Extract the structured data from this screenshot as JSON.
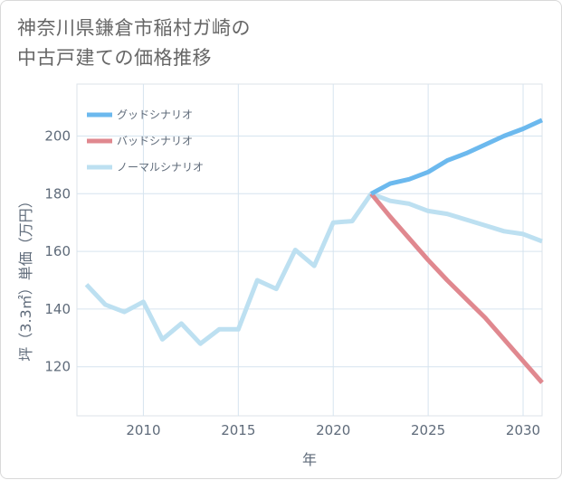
{
  "title": {
    "line1": "神奈川県鎌倉市稲村ガ崎の",
    "line2": "中古戸建ての価格推移"
  },
  "chart_data": {
    "type": "line",
    "xlabel": "年",
    "ylabel": "坪（3.3㎡）単価（万円）",
    "xlim": [
      2006.5,
      2031
    ],
    "ylim": [
      103,
      218
    ],
    "xticks": [
      2010,
      2015,
      2020,
      2025,
      2030
    ],
    "yticks": [
      120,
      140,
      160,
      180,
      200
    ],
    "grid": true,
    "legend_position": "top-left",
    "series": [
      {
        "name": "グッドシナリオ",
        "color": "#6cb9ee",
        "x": [
          2022,
          2023,
          2024,
          2025,
          2026,
          2027,
          2028,
          2029,
          2030,
          2031
        ],
        "y": [
          180,
          183.5,
          185,
          187.5,
          191.5,
          194,
          197,
          200,
          202.5,
          205.5
        ]
      },
      {
        "name": "バッドシナリオ",
        "color": "#e0888f",
        "x": [
          2022,
          2023,
          2024,
          2025,
          2026,
          2027,
          2028,
          2029,
          2030,
          2031
        ],
        "y": [
          180,
          172,
          164.5,
          157,
          150,
          143.5,
          137,
          129.5,
          122,
          114.5
        ]
      },
      {
        "name": "ノーマルシナリオ",
        "color": "#bde0f1",
        "x": [
          2007,
          2008,
          2009,
          2010,
          2011,
          2012,
          2013,
          2014,
          2015,
          2016,
          2017,
          2018,
          2019,
          2020,
          2021,
          2022,
          2023,
          2024,
          2025,
          2026,
          2027,
          2028,
          2029,
          2030,
          2031
        ],
        "y": [
          148.5,
          141.5,
          139,
          142.5,
          129.5,
          135,
          128,
          133,
          133,
          150,
          147,
          160.5,
          155,
          170,
          170.5,
          180,
          177.5,
          176.5,
          174,
          173,
          171,
          169,
          167,
          166,
          163.5
        ]
      }
    ]
  }
}
